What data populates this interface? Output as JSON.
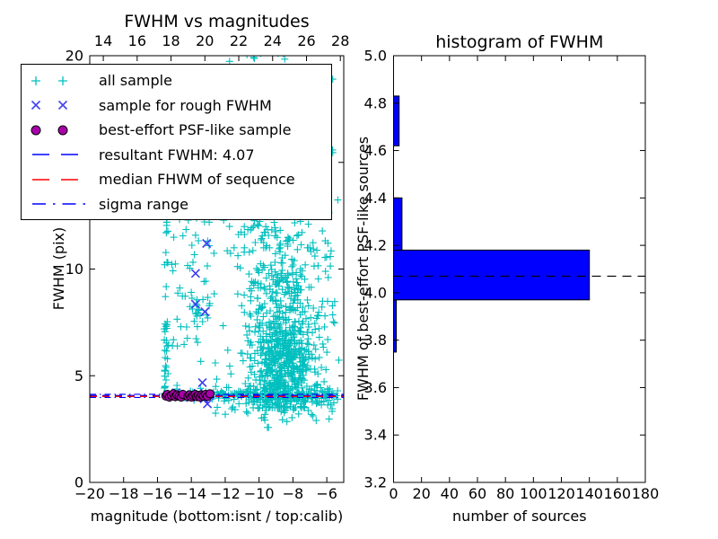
{
  "figure": {
    "background": "#ffffff"
  },
  "legend": {
    "items": [
      {
        "label": "all sample",
        "type": "marker",
        "marker": "plus",
        "color": "#00bfbf"
      },
      {
        "label": "sample for rough FWHM",
        "type": "marker",
        "marker": "x",
        "color": "#4444ee"
      },
      {
        "label": "best-effort PSF-like sample",
        "type": "marker",
        "marker": "circle",
        "color": "#aa00aa",
        "edge": "#000000"
      },
      {
        "label": "resultant FWHM: 4.07",
        "type": "line",
        "style": "dashed",
        "color": "#0000ff"
      },
      {
        "label": "median FHWM of sequence",
        "type": "line",
        "style": "dashed",
        "color": "#ff0000"
      },
      {
        "label": "sigma range",
        "type": "line",
        "style": "dashdot",
        "color": "#0000ff"
      }
    ]
  },
  "chart_data": [
    {
      "type": "scatter",
      "title": "FWHM vs magnitudes",
      "xlabel": "magnitude (bottom:isnt / top:calib)",
      "ylabel": "FWHM (pix)",
      "xlim": [
        -20,
        -5
      ],
      "ylim": [
        0,
        20
      ],
      "top_xlim": [
        13.2,
        28.2
      ],
      "grid": false,
      "x_ticks": [
        {
          "v": -20,
          "label": "−20"
        },
        {
          "v": -18,
          "label": "−18"
        },
        {
          "v": -16,
          "label": "−16"
        },
        {
          "v": -14,
          "label": "−14"
        },
        {
          "v": -12,
          "label": "−12"
        },
        {
          "v": -10,
          "label": "−10"
        },
        {
          "v": -8,
          "label": "−8"
        },
        {
          "v": -6,
          "label": "−6"
        }
      ],
      "top_x_ticks": [
        {
          "v": 14,
          "label": "14"
        },
        {
          "v": 16,
          "label": "16"
        },
        {
          "v": 18,
          "label": "18"
        },
        {
          "v": 20,
          "label": "20"
        },
        {
          "v": 22,
          "label": "22"
        },
        {
          "v": 24,
          "label": "24"
        },
        {
          "v": 26,
          "label": "26"
        },
        {
          "v": 28,
          "label": "28"
        }
      ],
      "y_ticks": [
        {
          "v": 0,
          "label": "0"
        },
        {
          "v": 5,
          "label": "5"
        },
        {
          "v": 10,
          "label": "10"
        },
        {
          "v": 15,
          "label": "15"
        },
        {
          "v": 20,
          "label": "20"
        }
      ],
      "seed": 7,
      "series": [
        {
          "name": "all sample",
          "marker": "plus",
          "color": "#00bfbf",
          "clusters": [
            {
              "n": 30,
              "x": {
                "dist": "uniform",
                "a": -15.62,
                "b": -15.35
              },
              "y": {
                "dist": "uniform",
                "a": 3.95,
                "b": 7.5
              }
            },
            {
              "n": 16,
              "x": {
                "dist": "uniform",
                "a": -15.6,
                "b": -15.38
              },
              "y": {
                "dist": "uniform",
                "a": 7.5,
                "b": 12.6
              }
            },
            {
              "n": 6,
              "x": {
                "dist": "uniform",
                "a": -15.55,
                "b": -15.4
              },
              "y": {
                "dist": "uniform",
                "a": 12.6,
                "b": 19.2
              }
            },
            {
              "n": 10,
              "x": {
                "dist": "uniform",
                "a": -12.4,
                "b": -8.3
              },
              "y": {
                "dist": "uniform",
                "a": 19.3,
                "b": 20.4
              }
            },
            {
              "n": 55,
              "x": {
                "dist": "uniform",
                "a": -15.35,
                "b": -12.45
              },
              "y": {
                "dist": "uniform",
                "a": 4.35,
                "b": 12.5
              }
            },
            {
              "n": 12,
              "x": {
                "dist": "normal",
                "mu": -13.65,
                "sigma": 0.18,
                "min": -14.05,
                "max": -13.3
              },
              "y": {
                "dist": "normal",
                "mu": 8.1,
                "sigma": 0.45,
                "min": 7.3,
                "max": 8.9
              }
            },
            {
              "n": 170,
              "x": {
                "dist": "uniform",
                "a": -15.6,
                "b": -5.3
              },
              "y": {
                "dist": "normal",
                "mu": 4.08,
                "sigma": 0.12
              }
            },
            {
              "n": 90,
              "x": {
                "dist": "uniform",
                "a": -12.6,
                "b": -5.35
              },
              "y": {
                "dist": "normal",
                "mu": 4.0,
                "sigma": 0.3,
                "min": 3.1,
                "max": 4.9
              }
            },
            {
              "n": 34,
              "x": {
                "dist": "uniform",
                "a": -10.3,
                "b": -5.3
              },
              "y": {
                "dist": "uniform",
                "a": 2.85,
                "b": 3.8
              }
            },
            {
              "n": 430,
              "x": {
                "dist": "normal",
                "mu": -8.5,
                "sigma": 0.95,
                "min": -12.2,
                "max": -5.15
              },
              "y": {
                "dist": "normal",
                "mu": 5.4,
                "sigma": 1.2,
                "min": 3.5,
                "max": 9.5
              }
            },
            {
              "n": 270,
              "x": {
                "dist": "normal",
                "mu": -8.8,
                "sigma": 1.05,
                "min": -12.2,
                "max": -5.15
              },
              "y": {
                "dist": "normal",
                "mu": 8.6,
                "sigma": 2.0,
                "min": 4.6,
                "max": 14.5
              }
            },
            {
              "n": 95,
              "x": {
                "dist": "normal",
                "mu": -9.2,
                "sigma": 1.15,
                "min": -12.6,
                "max": -5.5
              },
              "y": {
                "dist": "normal",
                "mu": 14.2,
                "sigma": 2.6,
                "min": 11,
                "max": 20.4
              }
            },
            {
              "n": 130,
              "x": {
                "dist": "uniform",
                "a": -11.9,
                "b": -5.2
              },
              "y": {
                "dist": "uniform",
                "a": 3.7,
                "b": 14
              }
            },
            {
              "n": 2,
              "x": {
                "dist": "uniform",
                "a": -9.6,
                "b": -9.2
              },
              "y": {
                "dist": "uniform",
                "a": 2.4,
                "b": 2.65
              }
            },
            {
              "n": 10,
              "x": {
                "dist": "uniform",
                "a": -7.5,
                "b": -5.3
              },
              "y": {
                "dist": "uniform",
                "a": 9.5,
                "b": 19.5
              }
            }
          ]
        },
        {
          "name": "sample for rough FWHM",
          "marker": "x",
          "color": "#3d3df0",
          "points": [
            [
              -13.1,
              11.2
            ],
            [
              -13.75,
              9.8
            ],
            [
              -13.75,
              8.35
            ],
            [
              -13.2,
              8.0
            ],
            [
              -13.35,
              4.68
            ],
            [
              -14.9,
              4.2
            ],
            [
              -14.4,
              4.12
            ],
            [
              -14.05,
              3.98
            ],
            [
              -13.6,
              4.18
            ],
            [
              -13.25,
              3.92
            ],
            [
              -12.95,
              4.08
            ],
            [
              -13.05,
              3.68
            ]
          ]
        },
        {
          "name": "best-effort PSF-like sample",
          "marker": "circle",
          "color": "#aa00aa",
          "edge_color": "#000000",
          "points": [
            [
              -15.5,
              4.05
            ],
            [
              -15.42,
              4.12
            ],
            [
              -15.3,
              4.0
            ],
            [
              -15.18,
              4.08
            ],
            [
              -15.05,
              4.15
            ],
            [
              -14.95,
              4.02
            ],
            [
              -14.85,
              4.1
            ],
            [
              -14.72,
              4.05
            ],
            [
              -14.6,
              4.0
            ],
            [
              -14.5,
              4.12
            ],
            [
              -14.2,
              4.03
            ],
            [
              -14.1,
              4.1
            ],
            [
              -14.0,
              4.0
            ],
            [
              -13.9,
              4.07
            ],
            [
              -13.78,
              4.12
            ],
            [
              -13.68,
              4.02
            ],
            [
              -13.58,
              4.08
            ],
            [
              -13.48,
              4.0
            ],
            [
              -13.38,
              4.1
            ],
            [
              -13.28,
              4.05
            ],
            [
              -13.15,
              4.12
            ],
            [
              -13.05,
              4.03
            ],
            [
              -12.9,
              4.15
            ]
          ]
        }
      ],
      "lines": [
        {
          "name": "resultant-fwhm",
          "y": 4.07,
          "color": "#0000ff",
          "style": "dashed"
        },
        {
          "name": "median-fhwm",
          "y": 4.03,
          "color": "#ff0000",
          "style": "dashed"
        },
        {
          "name": "sigma-upper",
          "y": 4.13,
          "color": "#0000ff",
          "style": "dashdot"
        },
        {
          "name": "sigma-lower",
          "y": 3.98,
          "color": "#0000ff",
          "style": "dashdot"
        }
      ]
    },
    {
      "type": "bar-horizontal",
      "title": "histogram of FWHM",
      "xlabel": "number of sources",
      "ylabel": "FWHM of best-effort PSF-like sources",
      "xlim": [
        0,
        180
      ],
      "ylim": [
        3.2,
        5.0
      ],
      "grid": false,
      "x_ticks": [
        {
          "v": 0,
          "label": "0"
        },
        {
          "v": 20,
          "label": "20"
        },
        {
          "v": 40,
          "label": "40"
        },
        {
          "v": 60,
          "label": "60"
        },
        {
          "v": 80,
          "label": "80"
        },
        {
          "v": 100,
          "label": "100"
        },
        {
          "v": 120,
          "label": "120"
        },
        {
          "v": 140,
          "label": "140"
        },
        {
          "v": 160,
          "label": "160"
        },
        {
          "v": 180,
          "label": "180"
        }
      ],
      "y_ticks": [
        {
          "v": 3.2,
          "label": "3.2"
        },
        {
          "v": 3.4,
          "label": "3.4"
        },
        {
          "v": 3.6,
          "label": "3.6"
        },
        {
          "v": 3.8,
          "label": "3.8"
        },
        {
          "v": 4.0,
          "label": "4.0"
        },
        {
          "v": 4.2,
          "label": "4.2"
        },
        {
          "v": 4.4,
          "label": "4.4"
        },
        {
          "v": 4.6,
          "label": "4.6"
        },
        {
          "v": 4.8,
          "label": "4.8"
        },
        {
          "v": 5.0,
          "label": "5.0"
        }
      ],
      "bar_color": "#0000ff",
      "bins": [
        {
          "from": 3.75,
          "to": 3.97,
          "count": 2
        },
        {
          "from": 3.97,
          "to": 4.18,
          "count": 140
        },
        {
          "from": 4.18,
          "to": 4.4,
          "count": 6
        },
        {
          "from": 4.4,
          "to": 4.62,
          "count": 0
        },
        {
          "from": 4.62,
          "to": 4.83,
          "count": 4
        }
      ],
      "hline": {
        "name": "resultant-fwhm",
        "y": 4.07,
        "color": "#000000",
        "style": "dashed"
      }
    }
  ]
}
